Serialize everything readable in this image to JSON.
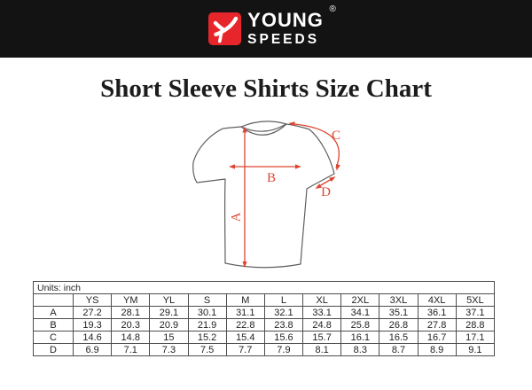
{
  "header": {
    "brand_line1": "YOUNG",
    "brand_line2": "SPEEDS",
    "registered_mark": "®",
    "bg_color": "#131313",
    "logo_color": "#e6262b"
  },
  "title": "Short Sleeve Shirts Size Chart",
  "diagram": {
    "arrow_color": "#dd4632",
    "outline_color": "#5f5f5f",
    "labels": {
      "a": "A",
      "b": "B",
      "c": "C",
      "d": "D"
    }
  },
  "table": {
    "units_label": "Units: inch",
    "columns": [
      "",
      "YS",
      "YM",
      "YL",
      "S",
      "M",
      "L",
      "XL",
      "2XL",
      "3XL",
      "4XL",
      "5XL"
    ],
    "rows": [
      {
        "label": "A",
        "values": [
          27.2,
          28.1,
          29.1,
          30.1,
          31.1,
          32.1,
          33.1,
          34.1,
          35.1,
          36.1,
          37.1
        ]
      },
      {
        "label": "B",
        "values": [
          19.3,
          20.3,
          20.9,
          21.9,
          22.8,
          23.8,
          24.8,
          25.8,
          26.8,
          27.8,
          28.8
        ]
      },
      {
        "label": "C",
        "values": [
          14.6,
          14.8,
          15,
          15.2,
          15.4,
          15.6,
          15.7,
          16.1,
          16.5,
          16.7,
          17.1
        ]
      },
      {
        "label": "D",
        "values": [
          6.9,
          7.1,
          7.3,
          7.5,
          7.7,
          7.9,
          8.1,
          8.3,
          8.7,
          8.9,
          9.1
        ]
      }
    ]
  },
  "chart_data": {
    "type": "table",
    "title": "Short Sleeve Shirts Size Chart",
    "units": "inch",
    "columns": [
      "YS",
      "YM",
      "YL",
      "S",
      "M",
      "L",
      "XL",
      "2XL",
      "3XL",
      "4XL",
      "5XL"
    ],
    "rows": [
      {
        "measure": "A",
        "values": [
          27.2,
          28.1,
          29.1,
          30.1,
          31.1,
          32.1,
          33.1,
          34.1,
          35.1,
          36.1,
          37.1
        ]
      },
      {
        "measure": "B",
        "values": [
          19.3,
          20.3,
          20.9,
          21.9,
          22.8,
          23.8,
          24.8,
          25.8,
          26.8,
          27.8,
          28.8
        ]
      },
      {
        "measure": "C",
        "values": [
          14.6,
          14.8,
          15,
          15.2,
          15.4,
          15.6,
          15.7,
          16.1,
          16.5,
          16.7,
          17.1
        ]
      },
      {
        "measure": "D",
        "values": [
          6.9,
          7.1,
          7.3,
          7.5,
          7.7,
          7.9,
          8.1,
          8.3,
          8.7,
          8.9,
          9.1
        ]
      }
    ]
  }
}
